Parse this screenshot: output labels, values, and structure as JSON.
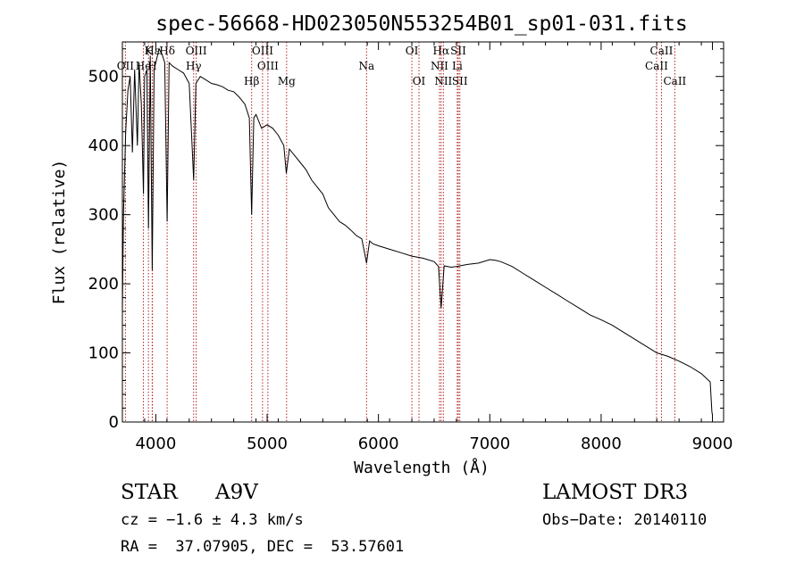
{
  "chart_data": {
    "type": "line",
    "title": "spec-56668-HD023050N553254B01_sp01-031.fits",
    "xlabel": "Wavelength (Å)",
    "ylabel": "Flux (relative)",
    "xlim": [
      3700,
      9100
    ],
    "ylim": [
      0,
      550
    ],
    "xticks": [
      4000,
      5000,
      6000,
      7000,
      8000,
      9000
    ],
    "yticks": [
      0,
      100,
      200,
      300,
      400,
      500
    ],
    "series": [
      {
        "name": "spectrum",
        "x": [
          3700,
          3710,
          3730,
          3750,
          3770,
          3790,
          3810,
          3835,
          3850,
          3870,
          3889,
          3900,
          3920,
          3934,
          3950,
          3968,
          3985,
          4000,
          4030,
          4060,
          4080,
          4102,
          4120,
          4150,
          4200,
          4250,
          4300,
          4340,
          4360,
          4400,
          4450,
          4500,
          4550,
          4600,
          4650,
          4700,
          4750,
          4800,
          4840,
          4861,
          4880,
          4900,
          4950,
          5000,
          5050,
          5100,
          5150,
          5172,
          5200,
          5250,
          5300,
          5350,
          5400,
          5450,
          5500,
          5550,
          5600,
          5650,
          5700,
          5750,
          5800,
          5850,
          5893,
          5920,
          5950,
          6000,
          6100,
          6200,
          6300,
          6400,
          6500,
          6540,
          6563,
          6590,
          6650,
          6700,
          6800,
          6900,
          7000,
          7050,
          7100,
          7200,
          7300,
          7400,
          7500,
          7600,
          7700,
          7800,
          7900,
          8000,
          8100,
          8200,
          8300,
          8400,
          8500,
          8600,
          8700,
          8800,
          8900,
          8980,
          8995,
          9000
        ],
        "y": [
          160,
          300,
          420,
          480,
          500,
          390,
          510,
          400,
          520,
          460,
          330,
          500,
          510,
          280,
          530,
          220,
          510,
          520,
          540,
          530,
          520,
          290,
          520,
          515,
          510,
          505,
          490,
          350,
          490,
          500,
          495,
          490,
          488,
          485,
          480,
          478,
          470,
          460,
          440,
          300,
          440,
          445,
          425,
          430,
          425,
          415,
          400,
          360,
          395,
          385,
          375,
          365,
          350,
          340,
          330,
          310,
          300,
          290,
          285,
          278,
          270,
          265,
          230,
          262,
          258,
          255,
          250,
          245,
          240,
          237,
          232,
          225,
          165,
          226,
          224,
          225,
          228,
          230,
          235,
          234,
          232,
          225,
          215,
          205,
          195,
          185,
          175,
          165,
          155,
          148,
          140,
          130,
          120,
          110,
          100,
          95,
          88,
          80,
          70,
          58,
          15,
          10
        ]
      }
    ],
    "lines_top": [
      {
        "label": "Hδ",
        "x": 4102
      },
      {
        "label": "K",
        "x": 3934
      },
      {
        "label": "Hε",
        "x": 3970
      },
      {
        "label": "OIII",
        "x": 4363
      },
      {
        "label": "OIII",
        "x": 4959
      },
      {
        "label": "OI",
        "x": 6300
      },
      {
        "label": "Hα",
        "x": 6563
      },
      {
        "label": "SII",
        "x": 6717
      },
      {
        "label": "CaII",
        "x": 8542
      }
    ],
    "lines_mid": [
      {
        "label": "OII",
        "x": 3727
      },
      {
        "label": "He",
        "x": 3889
      },
      {
        "label": "H",
        "x": 3968
      },
      {
        "label": "Hγ",
        "x": 4340
      },
      {
        "label": "OIII",
        "x": 5007
      },
      {
        "label": "Na",
        "x": 5893
      },
      {
        "label": "NII",
        "x": 6548
      },
      {
        "label": "Li",
        "x": 6708
      },
      {
        "label": "CaII",
        "x": 8498
      }
    ],
    "lines_low": [
      {
        "label": "Hβ",
        "x": 4861
      },
      {
        "label": "Mg",
        "x": 5175
      },
      {
        "label": "OI",
        "x": 6364
      },
      {
        "label": "NII",
        "x": 6583
      },
      {
        "label": "SII",
        "x": 6731
      },
      {
        "label": "CaII",
        "x": 8662
      }
    ]
  },
  "info": {
    "class": "STAR",
    "subclass": "A9V",
    "survey": "LAMOST DR3",
    "cz": "cz = −1.6 ± 4.3 km/s",
    "obs_date": "Obs−Date: 20140110",
    "coords": "RA =  37.07905, DEC =  53.57601"
  },
  "colors": {
    "line": "#000000",
    "marker": "#b22222"
  }
}
